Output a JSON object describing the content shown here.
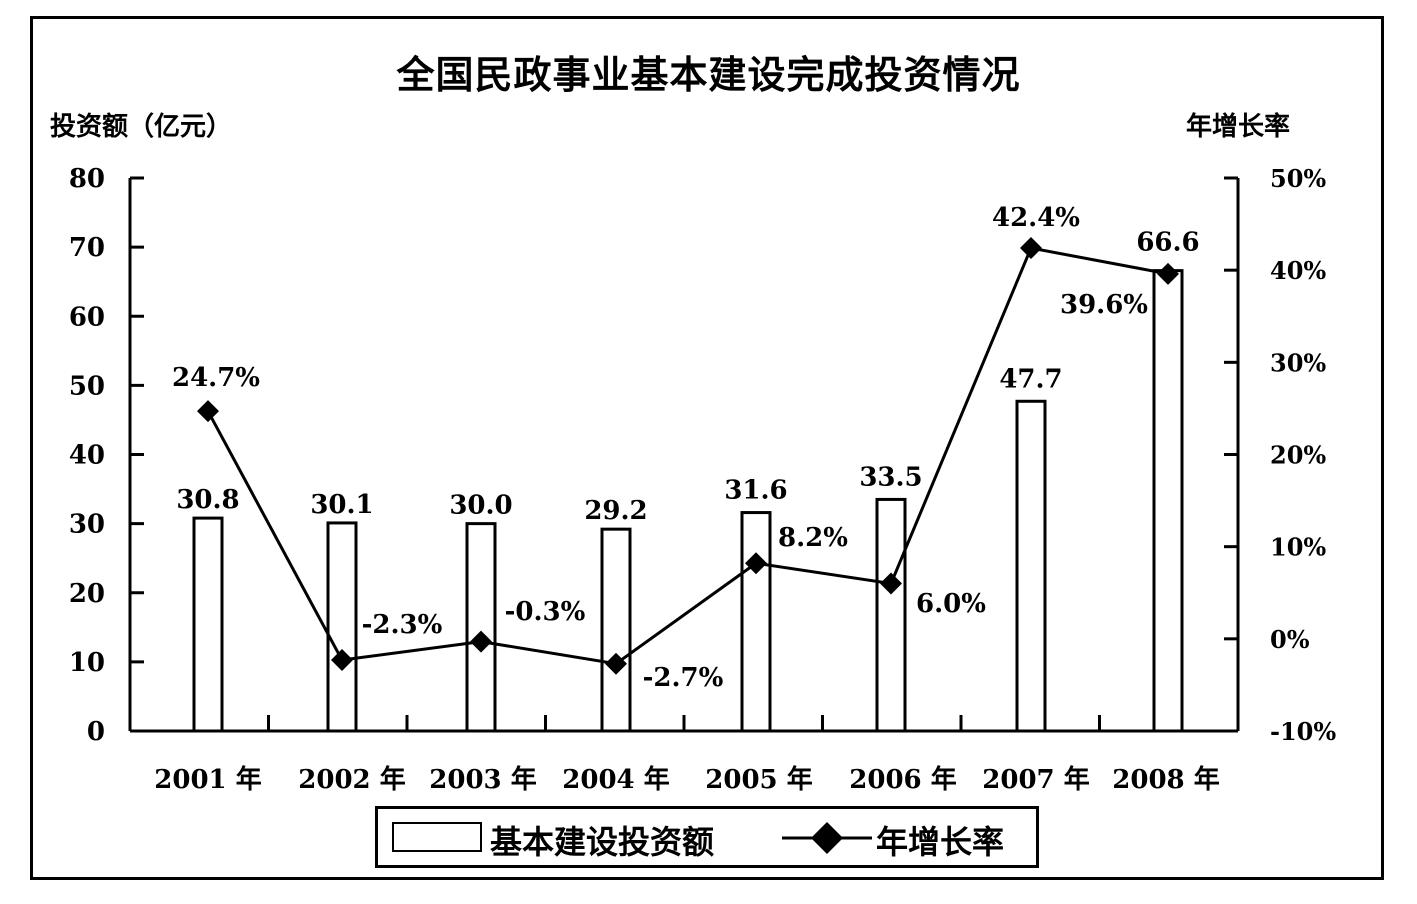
{
  "chart_data": {
    "type": "bar+line",
    "title": "全国民政事业基本建设完成投资情况",
    "ylabel_left": "投资额（亿元）",
    "ylabel_right": "年增长率",
    "categories": [
      "2001 年",
      "2002 年",
      "2003 年",
      "2004 年",
      "2005 年",
      "2006 年",
      "2007 年",
      "2008 年"
    ],
    "y_left_ticks": [
      "0",
      "10",
      "20",
      "30",
      "40",
      "50",
      "60",
      "70",
      "80"
    ],
    "y_right_ticks": [
      "-10%",
      "0%",
      "10%",
      "20%",
      "30%",
      "40%",
      "50%"
    ],
    "ylim_left": [
      0,
      80
    ],
    "ylim_right": [
      -10,
      50
    ],
    "series": [
      {
        "name": "基本建设投资额",
        "kind": "bar",
        "values": [
          30.8,
          30.1,
          30.0,
          29.2,
          31.6,
          33.5,
          47.7,
          66.6
        ],
        "labels": [
          "30.8",
          "30.1",
          "30.0",
          "29.2",
          "31.6",
          "33.5",
          "47.7",
          "66.6"
        ]
      },
      {
        "name": "年增长率",
        "kind": "line",
        "axis": "right",
        "values": [
          24.7,
          -2.3,
          -0.3,
          -2.7,
          8.2,
          6.0,
          42.4,
          39.6
        ],
        "labels": [
          "24.7%",
          "-2.3%",
          "-0.3%",
          "-2.7%",
          "8.2%",
          "6.0%",
          "42.4%",
          "39.6%"
        ]
      }
    ],
    "legend_position": "bottom-center",
    "grid": false,
    "colors": {
      "bar_fill": "#ffffff",
      "bar_stroke": "#000000",
      "line": "#000000",
      "marker": "#000000"
    }
  }
}
